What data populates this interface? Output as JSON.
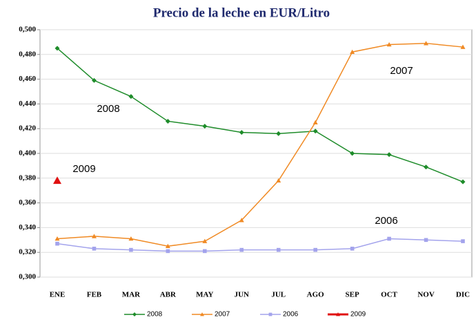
{
  "chart_data": {
    "type": "line",
    "title": "Precio de la leche en EUR/Litro",
    "categories": [
      "ENE",
      "FEB",
      "MAR",
      "ABR",
      "MAY",
      "JUN",
      "JUL",
      "AGO",
      "SEP",
      "OCT",
      "NOV",
      "DIC"
    ],
    "series": [
      {
        "name": "2008",
        "color": "#1e8c2a",
        "marker": "diamond",
        "values": [
          0.485,
          0.459,
          0.446,
          0.426,
          0.422,
          0.417,
          0.416,
          0.418,
          0.4,
          0.399,
          0.389,
          0.377
        ]
      },
      {
        "name": "2007",
        "color": "#f08a24",
        "marker": "triangle",
        "values": [
          0.331,
          0.333,
          0.331,
          0.325,
          0.329,
          0.346,
          0.378,
          0.425,
          0.482,
          0.488,
          0.489,
          0.486
        ]
      },
      {
        "name": "2006",
        "color": "#a3a3ec",
        "marker": "square",
        "values": [
          0.327,
          0.323,
          0.322,
          0.321,
          0.321,
          0.322,
          0.322,
          0.322,
          0.323,
          0.331,
          0.33,
          0.329
        ]
      },
      {
        "name": "2009",
        "color": "#e01010",
        "marker": "triangle",
        "values": [
          0.378,
          null,
          null,
          null,
          null,
          null,
          null,
          null,
          null,
          null,
          null,
          null
        ]
      }
    ],
    "annotations": [
      "2008",
      "2007",
      "2009",
      "2006"
    ],
    "ylim": [
      0.3,
      0.5
    ],
    "yticks": [
      {
        "value": 0.3,
        "label": "0,300"
      },
      {
        "value": 0.32,
        "label": "0,320"
      },
      {
        "value": 0.34,
        "label": "0,340"
      },
      {
        "value": 0.36,
        "label": "0,360"
      },
      {
        "value": 0.38,
        "label": "0,380"
      },
      {
        "value": 0.4,
        "label": "0,400"
      },
      {
        "value": 0.42,
        "label": "0,420"
      },
      {
        "value": 0.44,
        "label": "0,440"
      },
      {
        "value": 0.46,
        "label": "0,460"
      },
      {
        "value": 0.48,
        "label": "0,480"
      },
      {
        "value": 0.5,
        "label": "0,500"
      }
    ],
    "grid": true
  }
}
